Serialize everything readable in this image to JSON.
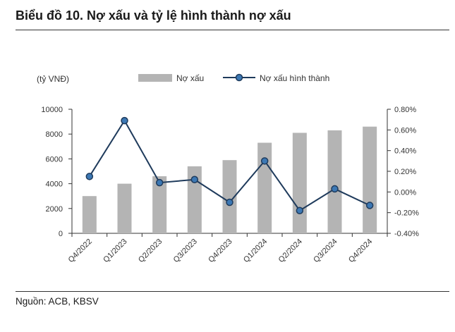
{
  "header": {
    "title": "Biểu đồ 10. Nợ xấu và tỷ lệ hình thành nợ xấu"
  },
  "footer": {
    "source": "Nguồn: ACB, KBSV"
  },
  "chart_data": {
    "type": "bar+line",
    "title": "Biểu đồ 10. Nợ xấu và tỷ lệ hình thành nợ xấu",
    "left_axis_unit": "(tỷ VNĐ)",
    "categories": [
      "Q4/2022",
      "Q1/2023",
      "Q2/2023",
      "Q3/2023",
      "Q4/2023",
      "Q1/2024",
      "Q2/2024",
      "Q3/2024",
      "Q4/2024"
    ],
    "series": [
      {
        "name": "Nợ xấu",
        "type": "bar",
        "axis": "left",
        "color": "#b4b4b4",
        "values": [
          3000,
          4000,
          4600,
          5400,
          5900,
          7300,
          8100,
          8300,
          8600
        ]
      },
      {
        "name": "Nợ xấu hình thành",
        "type": "line",
        "axis": "right",
        "color": "#1f3b5c",
        "marker_color": "#3c78b4",
        "values": [
          0.15,
          0.69,
          0.09,
          0.12,
          -0.1,
          0.3,
          -0.18,
          0.03,
          -0.13
        ]
      }
    ],
    "y_left": {
      "min": 0,
      "max": 10000,
      "ticks": [
        0,
        2000,
        4000,
        6000,
        8000,
        10000
      ]
    },
    "y_right": {
      "min": -0.4,
      "max": 0.8,
      "ticks": [
        -0.4,
        -0.2,
        0.0,
        0.2,
        0.4,
        0.6,
        0.8
      ],
      "tick_labels": [
        "-0.40%",
        "-0.20%",
        "0.00%",
        "0.20%",
        "0.40%",
        "0.60%",
        "0.80%"
      ]
    },
    "y_left_tick_labels": [
      "0",
      "2000",
      "4000",
      "6000",
      "8000",
      "10000"
    ],
    "grid": false,
    "legend_position": "top"
  }
}
